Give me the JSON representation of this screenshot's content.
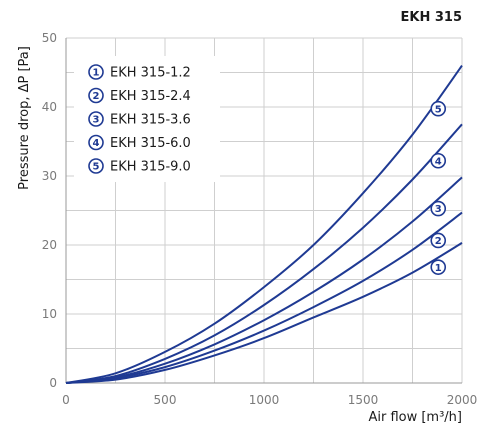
{
  "chart_data": {
    "type": "line",
    "title": "EKH 315",
    "xlabel": "Air flow [m³/h]",
    "ylabel": "Pressure drop, ΔP [Pa]",
    "xlim": [
      0,
      2000
    ],
    "ylim": [
      0,
      50
    ],
    "xticks": [
      0,
      500,
      1000,
      1500,
      2000
    ],
    "yticks": [
      0,
      10,
      20,
      30,
      40,
      50
    ],
    "grid": true,
    "legend_position": "top-left",
    "line_color": "#1f3a93",
    "x": [
      0,
      250,
      500,
      750,
      1000,
      1250,
      1500,
      1750,
      2000
    ],
    "series": [
      {
        "marker": "1",
        "name": "EKH 315-1.2",
        "values": [
          0,
          0.5,
          1.9,
          4.0,
          6.5,
          9.5,
          12.5,
          16.0,
          20.3
        ]
      },
      {
        "marker": "2",
        "name": "EKH 315-2.4",
        "values": [
          0,
          0.7,
          2.3,
          4.7,
          7.6,
          11.0,
          14.8,
          19.3,
          24.7
        ]
      },
      {
        "marker": "3",
        "name": "EKH 315-3.6",
        "values": [
          0,
          0.8,
          2.8,
          5.6,
          9.1,
          13.2,
          17.9,
          23.4,
          29.8
        ]
      },
      {
        "marker": "4",
        "name": "EKH 315-6.0",
        "values": [
          0,
          1.0,
          3.5,
          6.9,
          11.3,
          16.5,
          22.5,
          29.5,
          37.5
        ]
      },
      {
        "marker": "5",
        "name": "EKH 315-9.0",
        "values": [
          0,
          1.4,
          4.5,
          8.6,
          13.9,
          20.0,
          27.5,
          36.0,
          46.0
        ]
      }
    ],
    "marker_x": 1880
  }
}
